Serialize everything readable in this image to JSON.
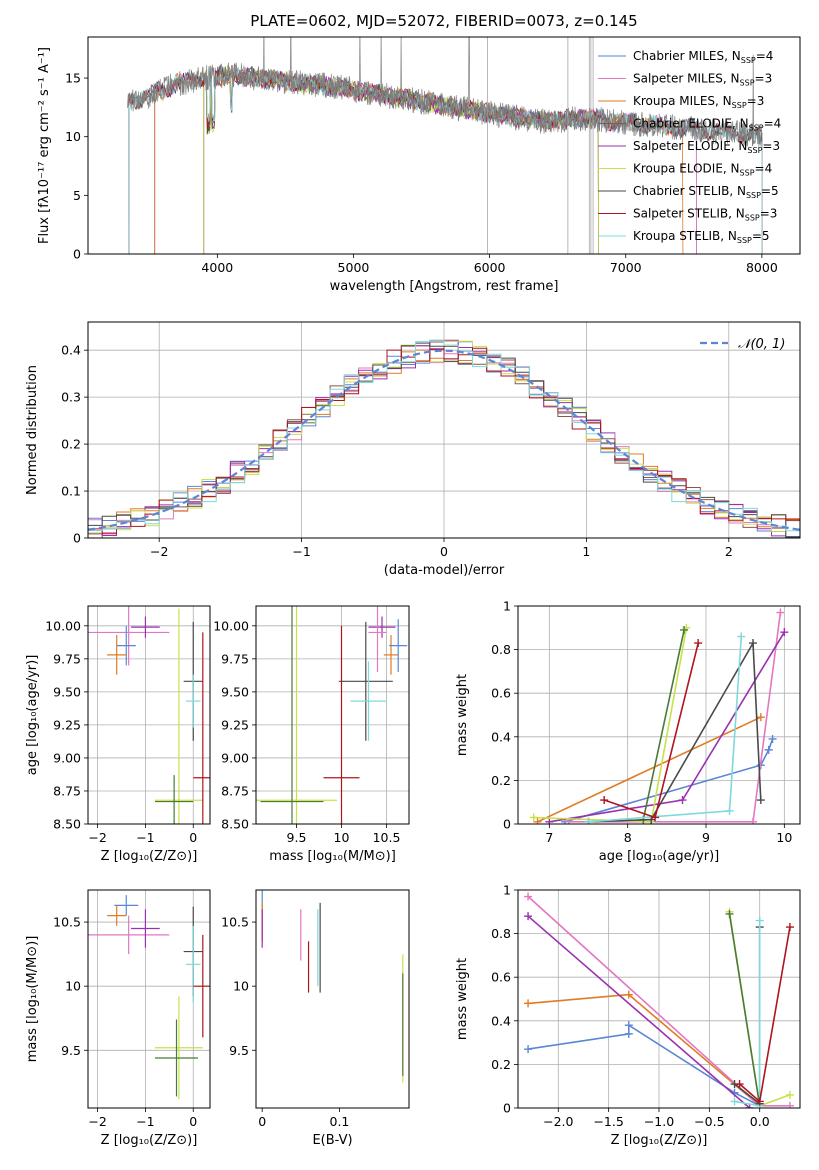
{
  "figure": {
    "title": "PLATE=0602, MJD=52072, FIBERID=0073, z=0.145"
  },
  "chart_data": [
    {
      "id": "spectrum",
      "type": "line",
      "title": "PLATE=0602, MJD=52072, FIBERID=0073, z=0.145",
      "xlabel": "wavelength [Angstrom, rest frame]",
      "ylabel": "Flux [fλ10⁻¹⁷ erg cm⁻² s⁻¹ A⁻¹]",
      "xlim": [
        3050,
        8280
      ],
      "ylim": [
        0,
        18.5
      ],
      "xticks": [
        4000,
        5000,
        6000,
        7000,
        8000
      ],
      "yticks": [
        0,
        5,
        10,
        15
      ],
      "grid": false,
      "legend_position": "right",
      "data_continuum": {
        "x": [
          3340,
          3500,
          3700,
          3900,
          4100,
          4300,
          4600,
          4900,
          5200,
          5500,
          5800,
          6100,
          6400,
          6700,
          7000,
          7300,
          7600,
          7900,
          8000
        ],
        "y": [
          13.0,
          13.5,
          14.5,
          15.0,
          15.3,
          15.0,
          14.6,
          14.2,
          13.6,
          13.0,
          12.4,
          11.8,
          11.3,
          11.6,
          11.2,
          10.9,
          10.5,
          10.2,
          10.0
        ]
      },
      "series": [
        {
          "name": "Chabrier MILES, N_SSP=4",
          "color": "#5b86d6",
          "x_start": 3540,
          "x_end": 7520
        },
        {
          "name": "Salpeter MILES, N_SSP=3",
          "color": "#e377c2",
          "x_start": 3540,
          "x_end": 7520
        },
        {
          "name": "Kroupa MILES, N_SSP=3",
          "color": "#e07b24",
          "x_start": 3540,
          "x_end": 7420
        },
        {
          "name": "Chabrier ELODIE, N_SSP=4",
          "color": "#8c564b",
          "x_start": 3900,
          "x_end": 6800
        },
        {
          "name": "Salpeter ELODIE, N_SSP=3",
          "color": "#9b30b0",
          "x_start": 3900,
          "x_end": 6800
        },
        {
          "name": "Kroupa ELODIE, N_SSP=4",
          "color": "#c8e04a",
          "x_start": 3900,
          "x_end": 6800
        },
        {
          "name": "Chabrier STELIB, N_SSP=5",
          "color": "#4a4a4a",
          "x_start": 3350,
          "x_end": 8000
        },
        {
          "name": "Salpeter STELIB, N_SSP=3",
          "color": "#b0141e",
          "x_start": 3350,
          "x_end": 8000
        },
        {
          "name": "Kroupa STELIB, N_SSP=5",
          "color": "#7fd8dc",
          "x_start": 3350,
          "x_end": 8000
        }
      ]
    },
    {
      "id": "residuals",
      "type": "histogram",
      "xlabel": "(data-model)/error",
      "ylabel": "Normed distribution",
      "xlim": [
        -2.5,
        2.5
      ],
      "ylim": [
        0,
        0.46
      ],
      "xticks": [
        -2,
        -1,
        0,
        1,
        2
      ],
      "yticks": [
        0.0,
        0.1,
        0.2,
        0.3,
        0.4
      ],
      "grid": true,
      "legend": [
        {
          "label": "𝒩(0, 1)",
          "color": "#5b86d6",
          "style": "dashed"
        }
      ],
      "legend_position": "top-right",
      "bin_width": 0.1,
      "reference_curve": "normal(0,1) pdf"
    },
    {
      "id": "age-vs-Z",
      "type": "scatter-errorbar",
      "xlabel": "Z [log₁₀(Z/Z⊙)]",
      "ylabel": "age  [log₁₀(age/yr)]",
      "xlim": [
        -2.2,
        0.35
      ],
      "ylim": [
        8.5,
        10.15
      ],
      "xticks": [
        -2,
        -1,
        0
      ],
      "yticks": [
        8.5,
        8.75,
        9.0,
        9.25,
        9.5,
        9.75,
        10.0
      ],
      "ytick_labels": [
        "8.50",
        "8.75",
        "9.00",
        "9.25",
        "9.50",
        "9.75",
        "10.00"
      ],
      "grid": true,
      "points": [
        {
          "x": -1.35,
          "y": 9.95,
          "xerr": 0.85,
          "yerr": 0.25,
          "color": "#e377c2"
        },
        {
          "x": -1.4,
          "y": 9.85,
          "xerr": 0.2,
          "yerr": 0.15,
          "color": "#5b86d6"
        },
        {
          "x": -1.0,
          "y": 9.99,
          "xerr": 0.3,
          "yerr": 0.08,
          "color": "#9b30b0"
        },
        {
          "x": -1.6,
          "y": 9.78,
          "xerr": 0.2,
          "yerr": 0.15,
          "color": "#e07b24"
        },
        {
          "x": -0.3,
          "y": 8.68,
          "xerr": 0.5,
          "yerr": 1.45,
          "color": "#c8e04a"
        },
        {
          "x": -0.4,
          "y": 8.67,
          "xerr": 0.4,
          "yerr": 0.2,
          "color": "#4a7a3a"
        },
        {
          "x": 0.0,
          "y": 9.58,
          "xerr": 0.2,
          "yerr": 0.45,
          "color": "#4a4a4a"
        },
        {
          "x": 0.0,
          "y": 9.43,
          "xerr": 0.15,
          "yerr": 0.2,
          "color": "#7fd8dc"
        },
        {
          "x": 0.2,
          "y": 8.85,
          "xerr": 0.2,
          "yerr": 1.1,
          "color": "#b0141e"
        }
      ]
    },
    {
      "id": "age-vs-mass",
      "type": "scatter-errorbar",
      "xlabel": "mass [log₁₀(M/M⊙)]",
      "ylabel": "",
      "xlim": [
        9.05,
        10.75
      ],
      "ylim": [
        8.5,
        10.15
      ],
      "xticks": [
        9.5,
        10.0,
        10.5
      ],
      "yticks": [
        8.5,
        8.75,
        9.0,
        9.25,
        9.5,
        9.75,
        10.0
      ],
      "ytick_labels": [
        "8.50",
        "8.75",
        "9.00",
        "9.25",
        "9.50",
        "9.75",
        "10.00"
      ],
      "grid": true,
      "points": [
        {
          "x": 9.5,
          "y": 8.68,
          "xerr": 0.45,
          "yerr": 1.45,
          "color": "#c8e04a"
        },
        {
          "x": 9.45,
          "y": 8.67,
          "xerr": 0.35,
          "yerr": 1.5,
          "color": "#4a7a3a"
        },
        {
          "x": 10.0,
          "y": 8.85,
          "xerr": 0.2,
          "yerr": 1.15,
          "color": "#b0141e"
        },
        {
          "x": 10.27,
          "y": 9.58,
          "xerr": 0.3,
          "yerr": 0.45,
          "color": "#4a4a4a"
        },
        {
          "x": 10.3,
          "y": 9.43,
          "xerr": 0.2,
          "yerr": 0.3,
          "color": "#7fd8dc"
        },
        {
          "x": 10.45,
          "y": 9.99,
          "xerr": 0.15,
          "yerr": 0.08,
          "color": "#9b30b0"
        },
        {
          "x": 10.4,
          "y": 9.95,
          "xerr": 0.1,
          "yerr": 0.3,
          "color": "#e377c2"
        },
        {
          "x": 10.55,
          "y": 9.78,
          "xerr": 0.08,
          "yerr": 0.15,
          "color": "#e07b24"
        },
        {
          "x": 10.63,
          "y": 9.85,
          "xerr": 0.1,
          "yerr": 0.2,
          "color": "#5b86d6"
        }
      ]
    },
    {
      "id": "massweight-vs-age",
      "type": "line",
      "xlabel": "age  [log₁₀(age/yr)]",
      "ylabel": "mass weight",
      "xlim": [
        6.6,
        10.2
      ],
      "ylim": [
        0.0,
        1.0
      ],
      "xticks": [
        7,
        8,
        9,
        10
      ],
      "yticks": [
        0.0,
        0.2,
        0.4,
        0.6,
        0.8,
        1.0
      ],
      "grid": true,
      "series": [
        {
          "color": "#5b86d6",
          "x": [
            7.2,
            9.7,
            9.8,
            9.85
          ],
          "y": [
            0.01,
            0.27,
            0.34,
            0.39
          ]
        },
        {
          "color": "#e377c2",
          "x": [
            7.25,
            9.6,
            9.95
          ],
          "y": [
            0.01,
            0.01,
            0.97
          ]
        },
        {
          "color": "#e07b24",
          "x": [
            6.85,
            9.7
          ],
          "y": [
            0.01,
            0.49
          ]
        },
        {
          "color": "#9b30b0",
          "x": [
            7.0,
            8.7,
            10.0
          ],
          "y": [
            0.01,
            0.11,
            0.88
          ]
        },
        {
          "color": "#c8e04a",
          "x": [
            6.8,
            8.3,
            8.75
          ],
          "y": [
            0.03,
            0.01,
            0.9
          ]
        },
        {
          "color": "#4a7a3a",
          "x": [
            8.2,
            8.72
          ],
          "y": [
            0.02,
            0.89
          ]
        },
        {
          "color": "#4a4a4a",
          "x": [
            7.5,
            8.3,
            9.6,
            9.7
          ],
          "y": [
            0.01,
            0.02,
            0.83,
            0.11
          ]
        },
        {
          "color": "#7fd8dc",
          "x": [
            7.5,
            9.3,
            9.45
          ],
          "y": [
            0.01,
            0.06,
            0.86
          ]
        },
        {
          "color": "#b0141e",
          "x": [
            7.7,
            8.35,
            8.9
          ],
          "y": [
            0.11,
            0.03,
            0.83
          ]
        }
      ]
    },
    {
      "id": "mass-vs-Z",
      "type": "scatter-errorbar",
      "xlabel": "Z [log₁₀(Z/Z⊙)]",
      "ylabel": "mass [log₁₀(M/M⊙)]",
      "xlim": [
        -2.2,
        0.35
      ],
      "ylim": [
        9.05,
        10.75
      ],
      "xticks": [
        -2,
        -1,
        0
      ],
      "yticks": [
        9.5,
        10.0,
        10.5
      ],
      "grid": true,
      "points": [
        {
          "x": -1.4,
          "y": 10.63,
          "xerr": 0.25,
          "yerr": 0.08,
          "color": "#5b86d6"
        },
        {
          "x": -1.6,
          "y": 10.55,
          "xerr": 0.2,
          "yerr": 0.08,
          "color": "#e07b24"
        },
        {
          "x": -1.35,
          "y": 10.4,
          "xerr": 0.85,
          "yerr": 0.15,
          "color": "#e377c2"
        },
        {
          "x": -1.0,
          "y": 10.45,
          "xerr": 0.3,
          "yerr": 0.15,
          "color": "#9b30b0"
        },
        {
          "x": 0.0,
          "y": 10.27,
          "xerr": 0.2,
          "yerr": 0.35,
          "color": "#4a4a4a"
        },
        {
          "x": 0.0,
          "y": 10.17,
          "xerr": 0.15,
          "yerr": 0.3,
          "color": "#7fd8dc"
        },
        {
          "x": 0.2,
          "y": 10.0,
          "xerr": 0.2,
          "yerr": 0.4,
          "color": "#b0141e"
        },
        {
          "x": -0.3,
          "y": 9.52,
          "xerr": 0.5,
          "yerr": 0.4,
          "color": "#c8e04a"
        },
        {
          "x": -0.35,
          "y": 9.44,
          "xerr": 0.45,
          "yerr": 0.3,
          "color": "#4a7a3a"
        }
      ]
    },
    {
      "id": "mass-vs-EBV",
      "type": "scatter-errorbar",
      "xlabel": "E(B-V)",
      "ylabel": "",
      "xlim": [
        -0.008,
        0.19
      ],
      "ylim": [
        9.05,
        10.75
      ],
      "xticks": [
        0.0,
        0.1
      ],
      "yticks": [
        9.5,
        10.0,
        10.5
      ],
      "grid": false,
      "points": [
        {
          "x": 0.0,
          "y": 10.55,
          "xerr": 0.0,
          "yerr": 0.2,
          "color": "#5b86d6"
        },
        {
          "x": 0.0,
          "y": 10.5,
          "xerr": 0.0,
          "yerr": 0.15,
          "color": "#e07b24"
        },
        {
          "x": 0.0,
          "y": 10.45,
          "xerr": 0.0,
          "yerr": 0.15,
          "color": "#9b30b0"
        },
        {
          "x": 0.05,
          "y": 10.4,
          "xerr": 0.0,
          "yerr": 0.2,
          "color": "#e377c2"
        },
        {
          "x": 0.06,
          "y": 10.15,
          "xerr": 0.0,
          "yerr": 0.2,
          "color": "#b0141e"
        },
        {
          "x": 0.072,
          "y": 10.3,
          "xerr": 0.0,
          "yerr": 0.3,
          "color": "#7fd8dc"
        },
        {
          "x": 0.075,
          "y": 10.3,
          "xerr": 0.0,
          "yerr": 0.35,
          "color": "#4a4a4a"
        },
        {
          "x": 0.182,
          "y": 9.75,
          "xerr": 0.0,
          "yerr": 0.5,
          "color": "#c8e04a"
        },
        {
          "x": 0.182,
          "y": 9.7,
          "xerr": 0.0,
          "yerr": 0.4,
          "color": "#4a7a3a"
        }
      ]
    },
    {
      "id": "massweight-vs-Z",
      "type": "line",
      "xlabel": "Z [log₁₀(Z/Z⊙)]",
      "ylabel": "mass weight",
      "xlim": [
        -2.4,
        0.4
      ],
      "ylim": [
        0.0,
        1.0
      ],
      "xticks": [
        -2.0,
        -1.5,
        -1.0,
        -0.5,
        0.0
      ],
      "xtick_labels": [
        "−2.0",
        "−1.5",
        "−1.0",
        "−0.5",
        "0.0"
      ],
      "yticks": [
        0.0,
        0.2,
        0.4,
        0.6,
        0.8,
        1.0
      ],
      "grid": true,
      "series": [
        {
          "color": "#5b86d6",
          "x": [
            -2.3,
            -1.3,
            -1.3,
            -0.25,
            0.0
          ],
          "y": [
            0.27,
            0.34,
            0.38,
            0.07,
            0.01
          ]
        },
        {
          "color": "#e07b24",
          "x": [
            -2.3,
            -1.3,
            0.0
          ],
          "y": [
            0.48,
            0.52,
            0.01
          ]
        },
        {
          "color": "#e377c2",
          "x": [
            -2.3,
            0.0,
            0.3
          ],
          "y": [
            0.97,
            0.01,
            0.01
          ]
        },
        {
          "color": "#9b30b0",
          "x": [
            -2.3,
            -0.1
          ],
          "y": [
            0.88,
            0.0
          ]
        },
        {
          "color": "#c8e04a",
          "x": [
            -0.3,
            0.0,
            0.3
          ],
          "y": [
            0.9,
            0.01,
            0.06
          ]
        },
        {
          "color": "#4a7a3a",
          "x": [
            -0.3,
            0.0
          ],
          "y": [
            0.89,
            0.01
          ]
        },
        {
          "color": "#4a4a4a",
          "x": [
            -0.25,
            0.0,
            0.0
          ],
          "y": [
            0.11,
            0.02,
            0.83
          ]
        },
        {
          "color": "#7fd8dc",
          "x": [
            -0.25,
            0.0,
            0.0
          ],
          "y": [
            0.03,
            0.01,
            0.86
          ]
        },
        {
          "color": "#b0141e",
          "x": [
            -0.2,
            0.0,
            0.3
          ],
          "y": [
            0.11,
            0.03,
            0.83
          ]
        }
      ]
    }
  ]
}
